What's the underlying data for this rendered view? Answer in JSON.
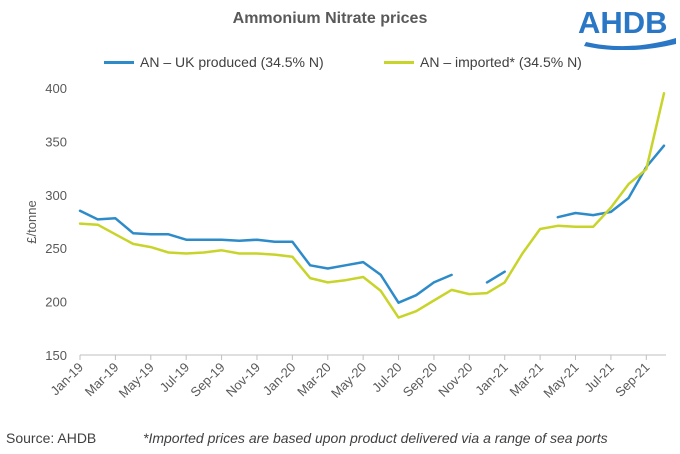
{
  "header": {
    "title": "Ammonium Nitrate prices",
    "brand": "AHDB"
  },
  "colors": {
    "uk_series": "#2E8BC9",
    "imported_series": "#C8D42A",
    "axis": "#BFBFBF",
    "brand": "#2A77C5"
  },
  "chart_data": {
    "type": "line",
    "title": "Ammonium Nitrate prices",
    "xlabel": "",
    "ylabel": "£/tonne",
    "ylim": [
      150,
      400
    ],
    "yticks": [
      150,
      200,
      250,
      300,
      350,
      400
    ],
    "grid": false,
    "legend_position": "top",
    "x_tick_labels": [
      "Jan-19",
      "Mar-19",
      "May-19",
      "Jul-19",
      "Sep-19",
      "Nov-19",
      "Jan-20",
      "Mar-20",
      "May-20",
      "Jul-20",
      "Sep-20",
      "Nov-20",
      "Jan-21",
      "Mar-21",
      "May-21",
      "Jul-21",
      "Sep-21"
    ],
    "categories": [
      "Jan-19",
      "Feb-19",
      "Mar-19",
      "Apr-19",
      "May-19",
      "Jun-19",
      "Jul-19",
      "Aug-19",
      "Sep-19",
      "Oct-19",
      "Nov-19",
      "Dec-19",
      "Jan-20",
      "Feb-20",
      "Mar-20",
      "Apr-20",
      "May-20",
      "Jun-20",
      "Jul-20",
      "Aug-20",
      "Sep-20",
      "Oct-20",
      "Nov-20",
      "Dec-20",
      "Jan-21",
      "Feb-21",
      "Mar-21",
      "Apr-21",
      "May-21",
      "Jun-21",
      "Jul-21",
      "Aug-21",
      "Sep-21",
      "Oct-21"
    ],
    "series": [
      {
        "name": "AN – UK produced (34.5% N)",
        "values": [
          285,
          277,
          278,
          264,
          263,
          263,
          258,
          258,
          258,
          257,
          258,
          256,
          256,
          234,
          231,
          234,
          237,
          225,
          199,
          206,
          218,
          225,
          null,
          218,
          228,
          null,
          null,
          279,
          283,
          281,
          284,
          297,
          326,
          346
        ]
      },
      {
        "name": "AN – imported* (34.5% N)",
        "values": [
          273,
          272,
          263,
          254,
          251,
          246,
          245,
          246,
          248,
          245,
          245,
          244,
          242,
          222,
          218,
          220,
          223,
          210,
          185,
          191,
          201,
          211,
          207,
          208,
          218,
          245,
          268,
          271,
          270,
          270,
          288,
          310,
          324,
          395
        ]
      }
    ]
  },
  "footer": {
    "source": "Source:  AHDB",
    "note": "*Imported prices are based upon product delivered via a range of sea ports"
  }
}
